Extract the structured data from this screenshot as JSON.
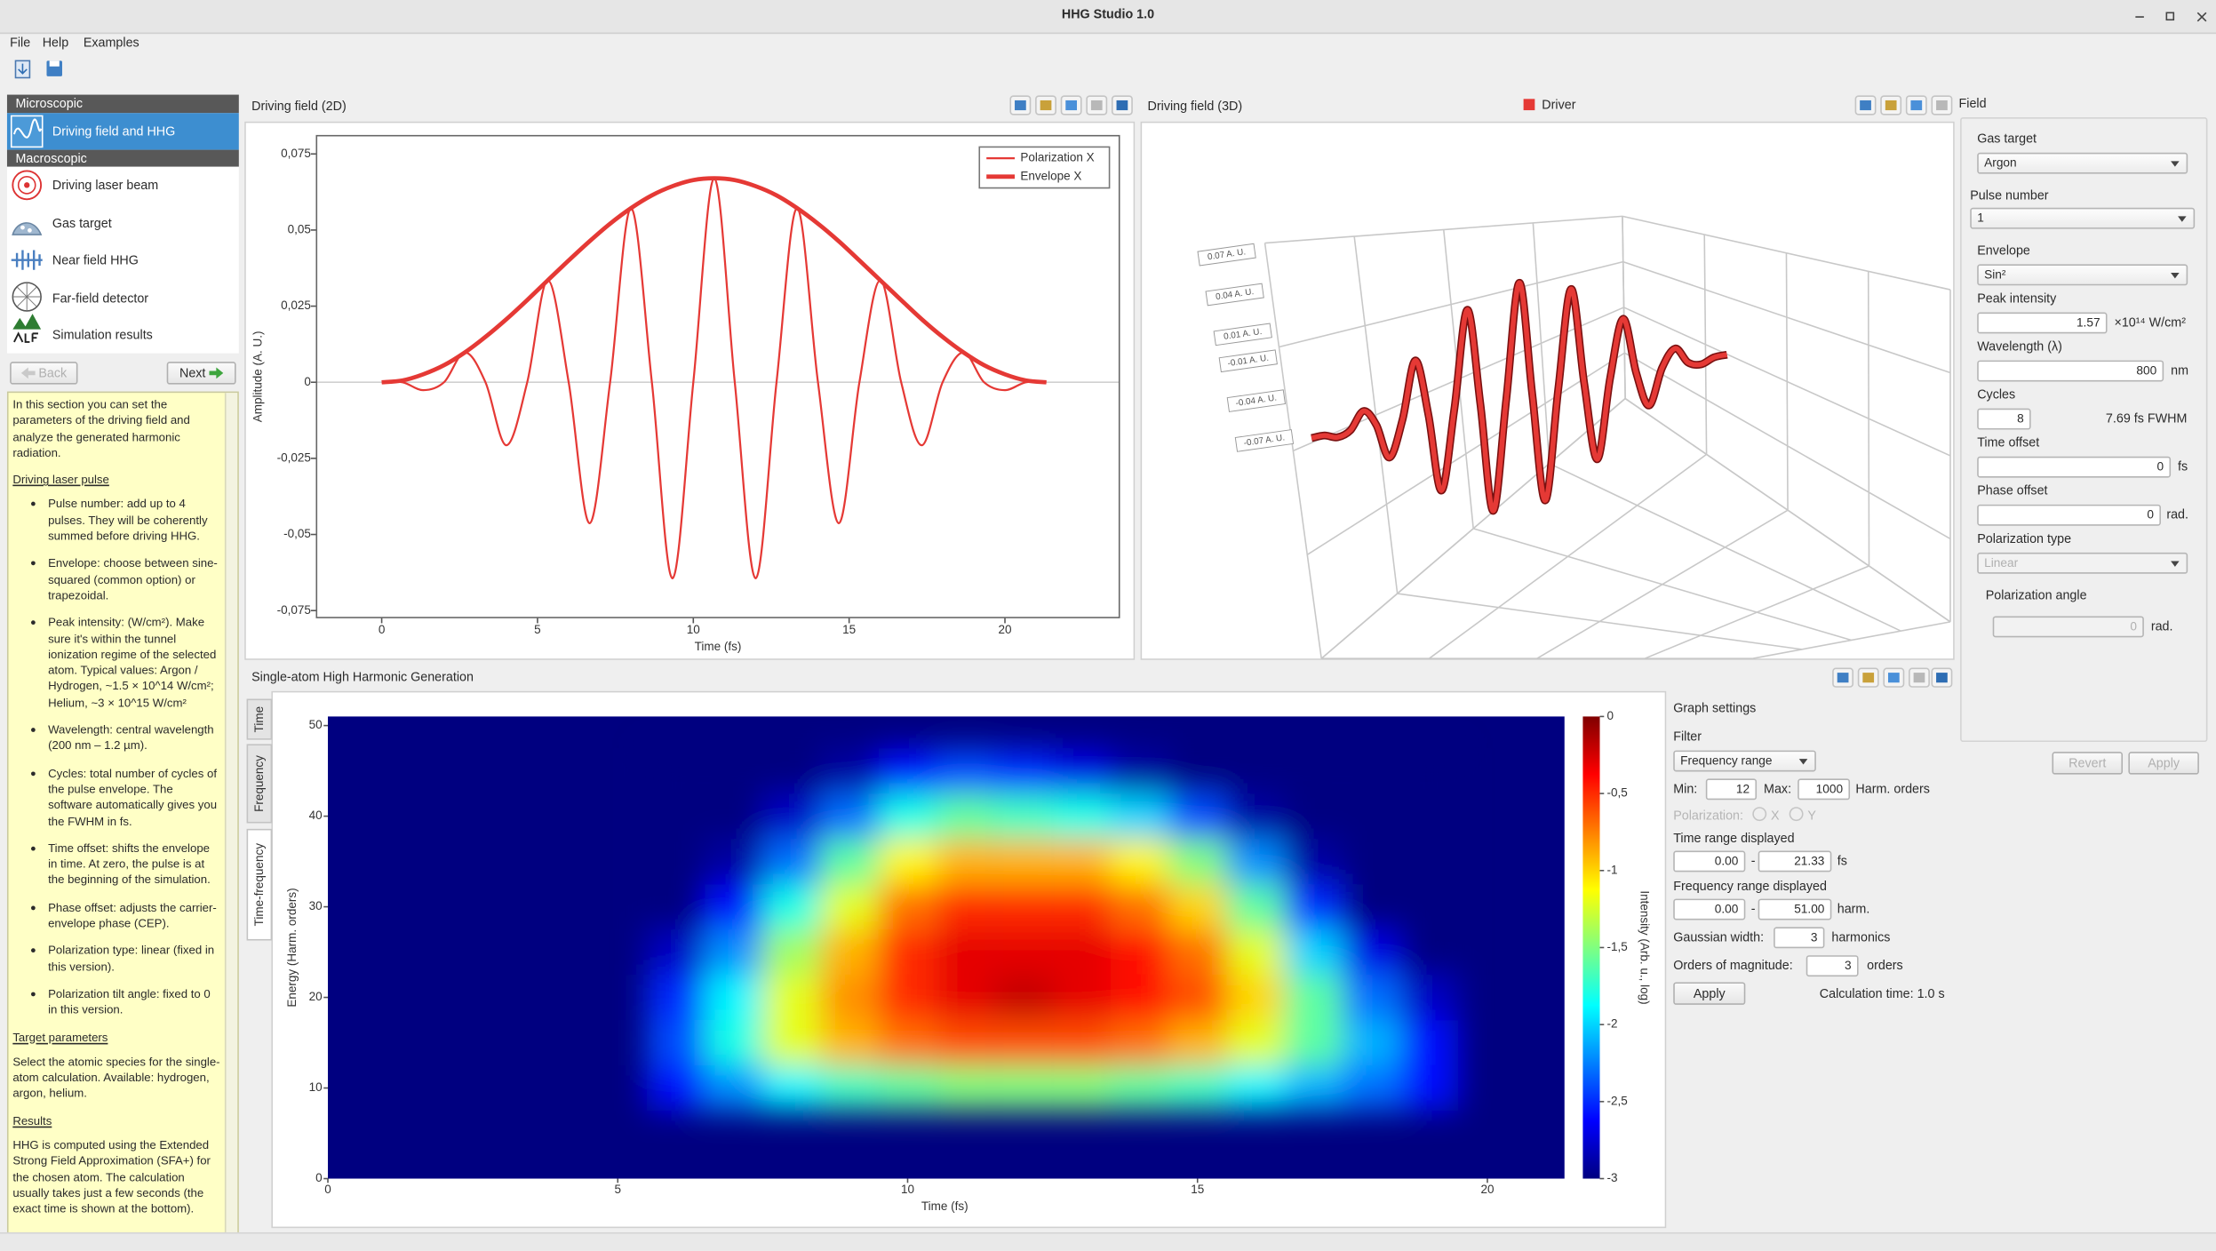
{
  "window": {
    "title": "HHG Studio 1.0"
  },
  "menu": [
    "File",
    "Help",
    "Examples"
  ],
  "sidebar": {
    "sections": [
      {
        "title": "Microscopic",
        "items": [
          "Driving field and HHG"
        ]
      },
      {
        "title": "Macroscopic",
        "items": [
          "Driving laser beam",
          "Gas target",
          "Near field HHG",
          "Far-field detector",
          "Simulation results"
        ]
      }
    ],
    "back": "Back",
    "next": "Next"
  },
  "help": {
    "intro": "In this section you can set the parameters of the driving field and analyze the generated harmonic radiation.",
    "sections": [
      {
        "heading": "Driving laser pulse",
        "bullets": [
          "Pulse number: add up to 4 pulses. They will be coherently summed before driving HHG.",
          "Envelope: choose between sine-squared (common option) or trapezoidal.",
          "Peak intensity: (W/cm²). Make sure it's within the tunnel ionization regime of the selected atom. Typical values: Argon / Hydrogen, ~1.5 × 10^14 W/cm²; Helium, ~3 × 10^15 W/cm²",
          "Wavelength: central wavelength (200 nm – 1.2 µm).",
          "Cycles: total number of cycles of the pulse envelope. The software automatically gives you the FWHM in fs.",
          "Time offset: shifts the envelope in time. At zero, the pulse is at the beginning of the simulation.",
          "Phase offset: adjusts the carrier-envelope phase (CEP).",
          "Polarization type: linear (fixed in this version).",
          "Polarization tilt angle: fixed to 0 in this version."
        ]
      },
      {
        "heading": "Target parameters",
        "text": "Select the atomic species for the single-atom calculation. Available: hydrogen, argon, helium."
      },
      {
        "heading": "Results",
        "text": "HHG is computed using the Extended Strong Field Approximation (SFA+) for the chosen atom. The calculation usually takes just a few seconds (the exact time is shown at the bottom)."
      }
    ]
  },
  "field_panel": {
    "title": "Field",
    "rows": [
      {
        "label": "Gas target",
        "value": "Argon"
      },
      {
        "label": "Pulse number",
        "value": "1"
      },
      {
        "label": "Envelope",
        "value": "Sin²"
      },
      {
        "label": "Peak intensity",
        "value": "1.57",
        "unit": "×10¹⁴ W/cm²"
      },
      {
        "label": "Wavelength (λ)",
        "value": "800",
        "unit": "nm"
      },
      {
        "label": "Cycles",
        "value": "8",
        "unit": "7.69 fs FWHM"
      },
      {
        "label": "Time offset",
        "value": "0",
        "unit": "fs"
      },
      {
        "label": "Phase offset",
        "value": "0",
        "unit": "rad."
      },
      {
        "label": "Polarization type",
        "value": "Linear"
      },
      {
        "label": "Polarization angle",
        "value": "0",
        "unit": "rad."
      }
    ],
    "revert": "Revert",
    "apply": "Apply"
  },
  "graph_settings": {
    "title": "Graph settings",
    "filter": "Filter",
    "filter_value": "Frequency range",
    "min_label": "Min:",
    "min": "12",
    "max_label": "Max:",
    "max": "1000",
    "max_unit": "Harm. orders",
    "polarization": "Polarization:",
    "pol_options": [
      "X",
      "Y"
    ],
    "time_range": "Time range displayed",
    "time_from": "0.00",
    "dash": "-",
    "time_to": "21.33",
    "time_unit": "fs",
    "freq_range": "Frequency range displayed",
    "freq_from": "0.00",
    "freq_to": "51.00",
    "freq_unit": "harm.",
    "gauss_label": "Gaussian width:",
    "gauss": "3",
    "gauss_unit": "harmonics",
    "orders_label": "Orders of magnitude:",
    "orders": "3",
    "orders_unit": "orders",
    "apply": "Apply",
    "calc_time": "Calculation time: 1.0 s"
  },
  "hhg_tabs": [
    "Time",
    "Frequency",
    "Time-frequency"
  ],
  "chart_data": [
    {
      "type": "line",
      "title": "Driving field (2D)",
      "x_label": "Time (fs)",
      "y_label": "Amplitude (A. U.)",
      "x": [
        0,
        0.67,
        1.33,
        2,
        2.67,
        3.33,
        4,
        4.67,
        5.33,
        6,
        6.67,
        7.33,
        8,
        8.67,
        9.33,
        10,
        10.67,
        11.33,
        12,
        12.67,
        13.33,
        14,
        14.67,
        15.33,
        16,
        16.67,
        17.33,
        18,
        18.67,
        19.33,
        20,
        20.67,
        21.33
      ],
      "series": [
        {
          "name": "Polarization X",
          "color": "#e53935",
          "line_width": 1.4,
          "values": [
            0,
            0,
            -0.0026,
            0,
            0.0098,
            0,
            -0.0207,
            0,
            0.0335,
            0,
            -0.0463,
            0,
            0.0572,
            0,
            -0.0644,
            0,
            0.067,
            0,
            -0.0644,
            0,
            0.0572,
            0,
            -0.0463,
            0,
            0.0335,
            0,
            -0.0207,
            0,
            0.0098,
            0,
            -0.0026,
            0,
            0
          ]
        },
        {
          "name": "Envelope X",
          "color": "#e53935",
          "line_width": 3,
          "values": [
            0,
            0.0006,
            0.0026,
            0.0056,
            0.0098,
            0.0149,
            0.0207,
            0.027,
            0.0335,
            0.04,
            0.0463,
            0.0521,
            0.0572,
            0.0614,
            0.0644,
            0.0664,
            0.067,
            0.0664,
            0.0644,
            0.0614,
            0.0572,
            0.0521,
            0.0463,
            0.04,
            0.0335,
            0.027,
            0.0207,
            0.0149,
            0.0098,
            0.0056,
            0.0026,
            0.0006,
            0
          ]
        }
      ],
      "xlim": [
        -2.09,
        23.67
      ],
      "ylim": [
        -0.0773,
        0.081
      ],
      "xticks": [
        0,
        5,
        10,
        15,
        20
      ],
      "yticks": [
        {
          "value": 0.075,
          "label": "0,075"
        },
        {
          "value": 0.05,
          "label": "0,05"
        },
        {
          "value": 0.025,
          "label": "0,025"
        },
        0,
        {
          "value": -0.025,
          "label": "-0,025"
        },
        {
          "value": -0.05,
          "label": "-0,05"
        },
        {
          "value": -0.075,
          "label": "-0,075"
        }
      ],
      "legend": "upper right"
    },
    {
      "type": "line3d",
      "title": "Driving field (3D)",
      "series": [
        {
          "name": "Driver",
          "color": "#e53935"
        }
      ],
      "zticks": [
        {
          "value": 0.07,
          "label": "0.07 A. U."
        },
        {
          "value": 0.04,
          "label": "0.04 A. U."
        },
        {
          "value": 0.01,
          "label": "0.01 A. U."
        },
        {
          "value": -0.01,
          "label": "-0.01 A. U."
        },
        {
          "value": -0.04,
          "label": "-0.04 A. U."
        },
        {
          "value": -0.07,
          "label": "-0.07 A. U."
        }
      ]
    },
    {
      "type": "heatmap",
      "title": "Single-atom High Harmonic Generation",
      "x_label": "Time (fs)",
      "y_label": "Energy (Harm. orders)",
      "x": [
        6,
        7,
        8,
        9,
        10,
        11,
        12,
        13,
        14,
        15,
        16,
        17,
        18,
        19
      ],
      "y": [
        10,
        15,
        20,
        25,
        30,
        35,
        40,
        45
      ],
      "values": [
        [
          -2.6,
          -2.2,
          -1.9,
          -1.7,
          -1.6,
          -1.5,
          -1.5,
          -1.5,
          -1.6,
          -1.7,
          -1.9,
          -2.1,
          -2.3,
          -2.6
        ],
        [
          -2.4,
          -1.8,
          -1.2,
          -0.9,
          -0.7,
          -0.6,
          -0.6,
          -0.6,
          -0.7,
          -0.9,
          -1.2,
          -1.6,
          -2.1,
          -2.6
        ],
        [
          -2.5,
          -1.9,
          -1.2,
          -0.8,
          -0.5,
          -0.3,
          -0.2,
          -0.3,
          -0.4,
          -0.6,
          -1,
          -1.6,
          -2.3,
          -2.8
        ],
        [
          -2.8,
          -2.2,
          -1.4,
          -0.9,
          -0.5,
          -0.3,
          -0.3,
          -0.3,
          -0.4,
          -0.7,
          -1.2,
          -2,
          -2.7,
          -3
        ],
        [
          -3,
          -2.6,
          -1.8,
          -1.2,
          -0.7,
          -0.5,
          -0.5,
          -0.5,
          -0.7,
          -1,
          -1.6,
          -2.5,
          -3,
          -3
        ],
        [
          -3,
          -2.9,
          -2.3,
          -1.6,
          -1.1,
          -0.9,
          -0.9,
          -0.9,
          -1.1,
          -1.5,
          -2.2,
          -2.9,
          -3,
          -3
        ],
        [
          -3,
          -3,
          -2.8,
          -2.3,
          -1.8,
          -1.6,
          -1.7,
          -1.8,
          -2,
          -2.4,
          -2.9,
          -3,
          -3,
          -3
        ],
        [
          -3,
          -3,
          -3,
          -2.9,
          -2.6,
          -2.4,
          -2.5,
          -2.7,
          -2.9,
          -3,
          -3,
          -3,
          -3,
          -3
        ]
      ],
      "xlim": [
        0,
        21.33
      ],
      "ylim": [
        0,
        51
      ],
      "xticks": [
        0,
        5,
        10,
        15,
        20
      ],
      "yticks": [
        0,
        10,
        20,
        30,
        40,
        50
      ],
      "colormap": "jet",
      "colorbar": {
        "label": "Intensity (Arb. u., log)",
        "lim": [
          -3,
          0
        ],
        "ticks": [
          0,
          {
            "value": -0.5,
            "label": "-0,5"
          },
          -1,
          {
            "value": -1.5,
            "label": "-1,5"
          },
          -2,
          {
            "value": -2.5,
            "label": "-2,5"
          },
          -3
        ]
      }
    }
  ]
}
